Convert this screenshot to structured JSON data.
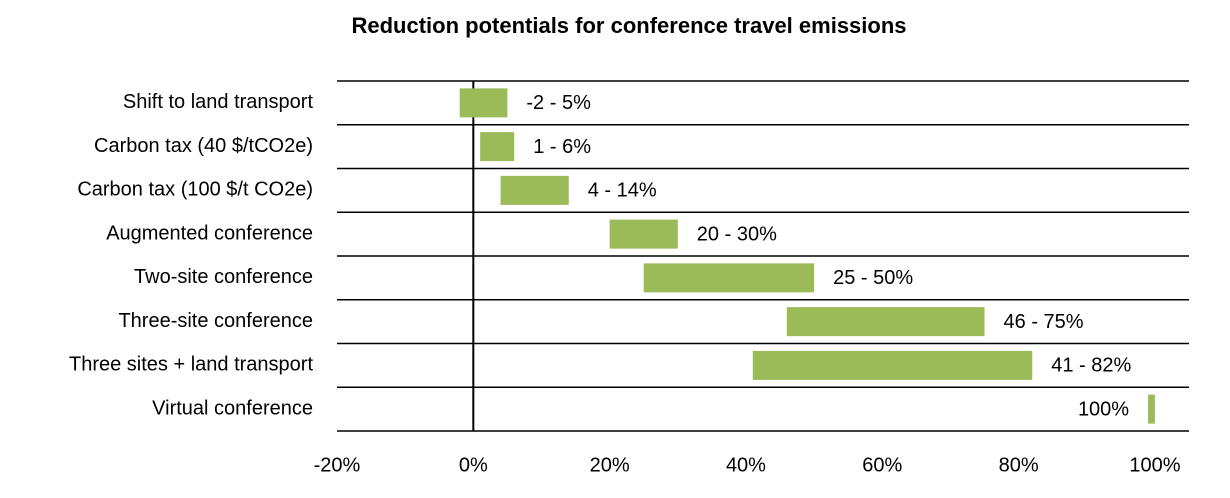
{
  "chart_data": {
    "type": "range-bar",
    "title": "Reduction potentials for conference travel emissions",
    "categories": [
      "Shift to land transport",
      "Carbon tax (40 $/tCO2e)",
      "Carbon tax (100 $/t CO2e)",
      "Augmented conference",
      "Two-site conference",
      "Three-site conference",
      "Three sites + land transport",
      "Virtual conference"
    ],
    "low": [
      -2,
      1,
      4,
      20,
      25,
      46,
      41,
      99
    ],
    "high": [
      5,
      6,
      14,
      30,
      50,
      75,
      82,
      100
    ],
    "value_labels": [
      "-2 - 5%",
      "1 - 6%",
      "4 - 14%",
      "20 - 30%",
      "25 - 50%",
      "46 - 75%",
      "41 - 82%",
      "100%"
    ],
    "color": "#9bbb59",
    "xlim": [
      -20,
      105
    ],
    "xticks": [
      {
        "value": -20,
        "label": "-20%"
      },
      {
        "value": 0,
        "label": "0%"
      },
      {
        "value": 20,
        "label": "20%"
      },
      {
        "value": 40,
        "label": "40%"
      },
      {
        "value": 60,
        "label": "60%"
      },
      {
        "value": 80,
        "label": "80%"
      },
      {
        "value": 100,
        "label": "100%"
      }
    ]
  }
}
